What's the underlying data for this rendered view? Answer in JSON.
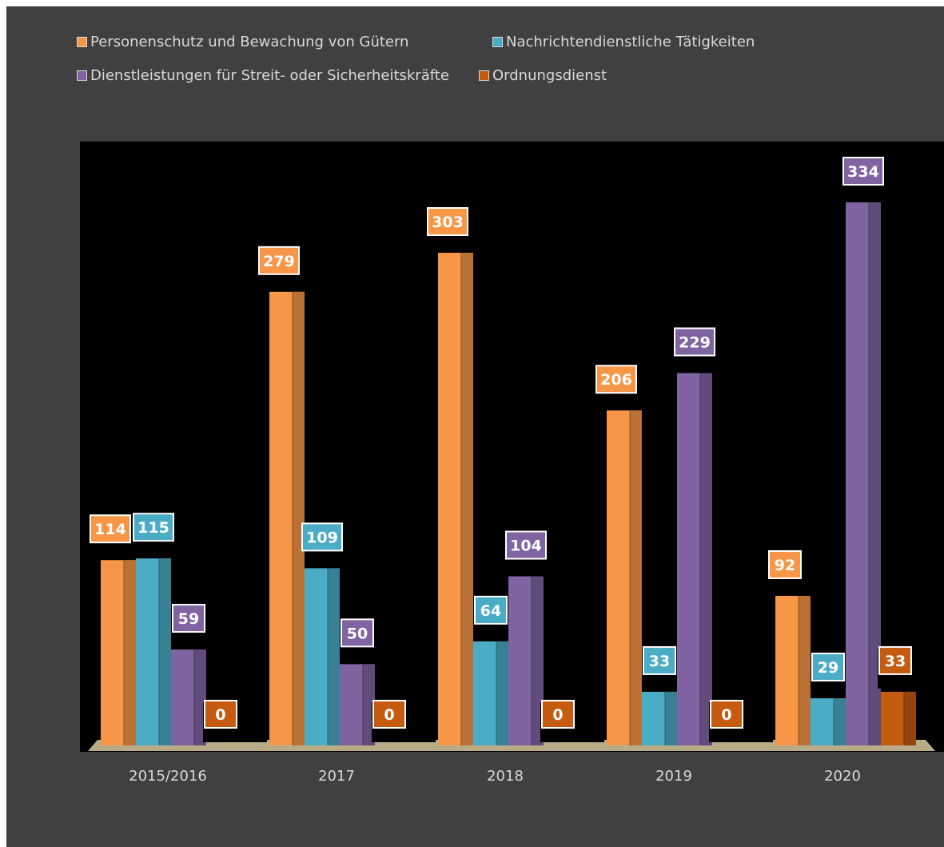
{
  "chart_data": {
    "type": "bar",
    "title": "",
    "xlabel": "",
    "ylabel": "",
    "categories": [
      "2015/2016",
      "2017",
      "2018",
      "2019",
      "2020"
    ],
    "series": [
      {
        "name": "Personenschutz und Bewachung von Gütern",
        "values": [
          114,
          279,
          303,
          206,
          92
        ],
        "color": "#f79646",
        "label_color": "#f79646"
      },
      {
        "name": "Nachrichtendienstliche Tätigkeiten",
        "values": [
          115,
          109,
          64,
          33,
          29
        ],
        "color": "#4bacc6",
        "label_color": "#4bacc6"
      },
      {
        "name": "Dienstleistungen für Streit- oder Sicherheitskräfte",
        "values": [
          59,
          50,
          104,
          229,
          334
        ],
        "color": "#8064a2",
        "label_color": "#8064a2"
      },
      {
        "name": "Ordnungsdienst",
        "values": [
          0,
          0,
          0,
          0,
          33
        ],
        "color": "#c55a11",
        "label_color": "#c55a11"
      }
    ],
    "ylim": [
      0,
      334
    ],
    "grid": false,
    "legend_position": "top-left"
  }
}
